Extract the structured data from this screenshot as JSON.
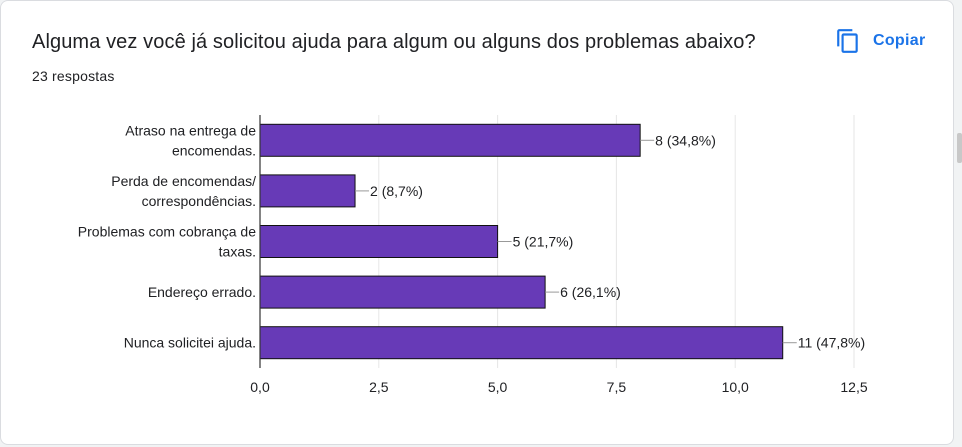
{
  "header": {
    "title": "Alguma vez você já solicitou ajuda para algum ou alguns dos problemas abaixo?",
    "responses": "23 respostas",
    "copy_label": "Copiar",
    "copy_icon": "copy-icon"
  },
  "colors": {
    "bar": "#673ab7",
    "accent": "#1a73e8",
    "text": "#202124",
    "grid": "#e6e6e6",
    "axis": "#333333"
  },
  "chart_data": {
    "type": "bar",
    "orientation": "horizontal",
    "title": "Alguma vez você já solicitou ajuda para algum ou alguns dos problemas abaixo?",
    "xlabel": "",
    "ylabel": "",
    "xlim": [
      0,
      12.5
    ],
    "ticks": [
      "0,0",
      "2,5",
      "5,0",
      "7,5",
      "10,0",
      "12,5"
    ],
    "tick_values": [
      0,
      2.5,
      5,
      7.5,
      10,
      12.5
    ],
    "grid": true,
    "legend": "none",
    "categories": [
      [
        "Atraso na entrega de",
        "encomendas."
      ],
      [
        "Perda de encomendas/",
        "correspondências."
      ],
      [
        "Problemas com cobrança de",
        "taxas."
      ],
      [
        "Endereço errado."
      ],
      [
        "Nunca solicitei ajuda."
      ]
    ],
    "values": [
      8,
      2,
      5,
      6,
      11
    ],
    "value_labels": [
      "8 (34,8%)",
      "2 (8,7%)",
      "5 (21,7%)",
      "6 (26,1%)",
      "11 (47,8%)"
    ]
  }
}
